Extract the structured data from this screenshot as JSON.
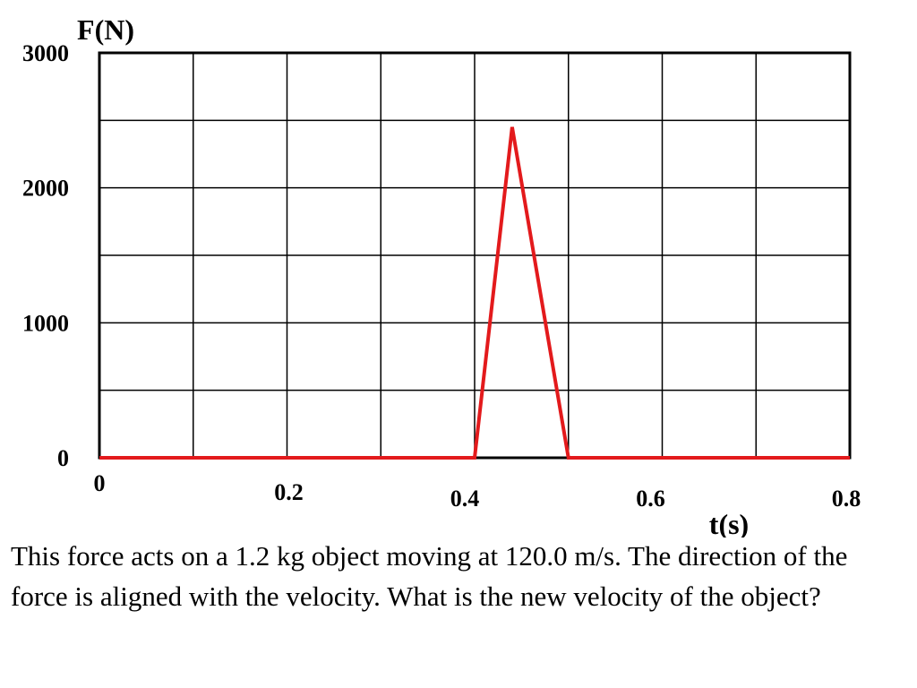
{
  "chart_data": {
    "type": "line",
    "ylabel": "F(N)",
    "xlabel": "t(s)",
    "xlim": [
      0,
      0.8
    ],
    "ylim": [
      0,
      3000
    ],
    "grid": true,
    "x_ticks": [
      {
        "value": 0,
        "label": "0"
      },
      {
        "value": 0.2,
        "label": "0.2"
      },
      {
        "value": 0.4,
        "label": "0.4"
      },
      {
        "value": 0.6,
        "label": "0.6"
      },
      {
        "value": 0.8,
        "label": "0.8"
      }
    ],
    "y_ticks": [
      {
        "value": 0,
        "label": "0"
      },
      {
        "value": 1000,
        "label": "1000"
      },
      {
        "value": 2000,
        "label": "2000"
      },
      {
        "value": 3000,
        "label": "3000"
      }
    ],
    "grid_x": [
      0,
      0.1,
      0.2,
      0.3,
      0.4,
      0.5,
      0.6,
      0.7,
      0.8
    ],
    "grid_y": [
      0,
      500,
      1000,
      1500,
      2000,
      2500,
      3000
    ],
    "series": [
      {
        "x": [
          0,
          0.4,
          0.44,
          0.5,
          0.8
        ],
        "y": [
          0,
          0,
          2450,
          0,
          0
        ],
        "color": "#e31a1c"
      }
    ]
  },
  "question": {
    "text": "This force acts on a 1.2 kg object moving at 120.0 m/s. The direction of the force is aligned with the velocity. What is the new velocity of the object?"
  }
}
